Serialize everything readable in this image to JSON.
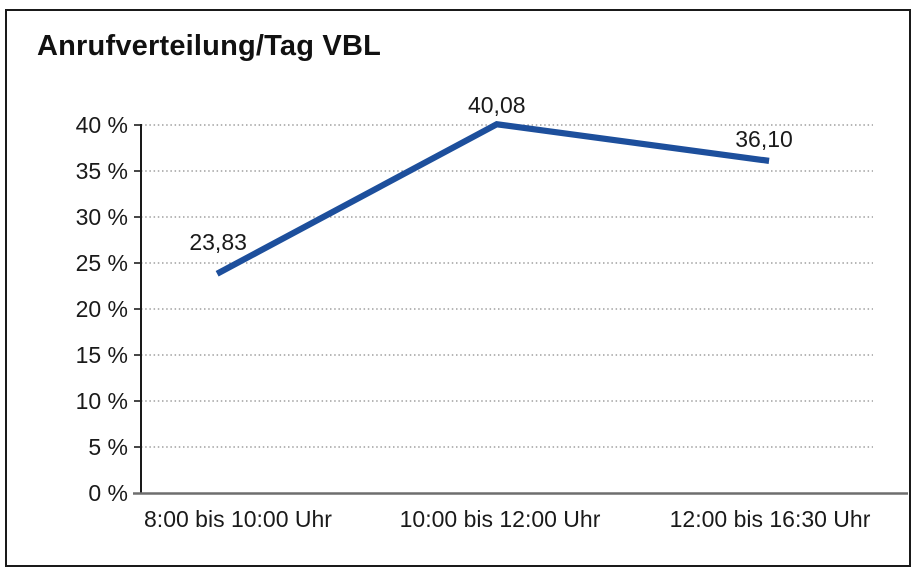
{
  "chart_data": {
    "type": "line",
    "title": "Anrufverteilung/Tag VBL",
    "categories": [
      "8:00 bis 10:00 Uhr",
      "10:00 bis 12:00 Uhr",
      "12:00 bis 16:30 Uhr"
    ],
    "values": [
      23.83,
      40.08,
      36.1
    ],
    "point_labels": [
      "23,83",
      "40,08",
      "36,10"
    ],
    "xlabel": "",
    "ylabel": "",
    "ylim": [
      0,
      40
    ],
    "ytick_step": 5,
    "ytick_labels": [
      "0 %",
      "5 %",
      "10 %",
      "15 %",
      "20 %",
      "25 %",
      "30 %",
      "35 %",
      "40 %"
    ],
    "grid": "horizontal-dotted",
    "legend": "none",
    "colors": {
      "line": "#1d4f9c",
      "axis": "#1a1a1a",
      "x_axis_line": "#6e6e6e",
      "gridline": "#8a8a8a",
      "text": "#1a1a1a",
      "background": "#ffffff",
      "border": "#1a1a1a"
    }
  }
}
